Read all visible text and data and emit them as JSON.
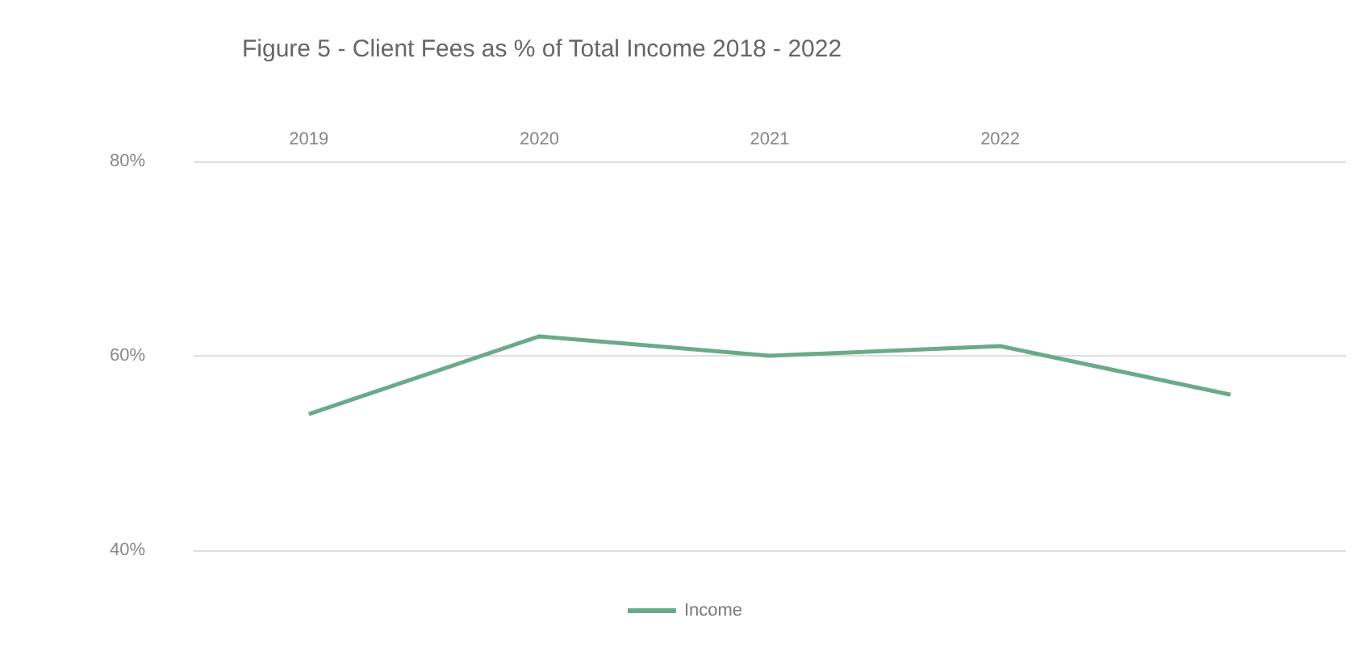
{
  "chart_data": {
    "type": "line",
    "title": "Figure 5 - Client Fees as % of Total Income 2018 - 2022",
    "categories": [
      "2019",
      "2020",
      "2021",
      "2022",
      null
    ],
    "series": [
      {
        "name": "Income",
        "color": "#6aaa88",
        "values": [
          54,
          62,
          60,
          61,
          56
        ]
      }
    ],
    "ylim": [
      40,
      80
    ],
    "yticks": [
      {
        "value": 40,
        "label": "40%"
      },
      {
        "value": 60,
        "label": "60%"
      },
      {
        "value": 80,
        "label": "80%"
      }
    ],
    "grid": "y",
    "legend": "bottom",
    "marker": "none"
  }
}
